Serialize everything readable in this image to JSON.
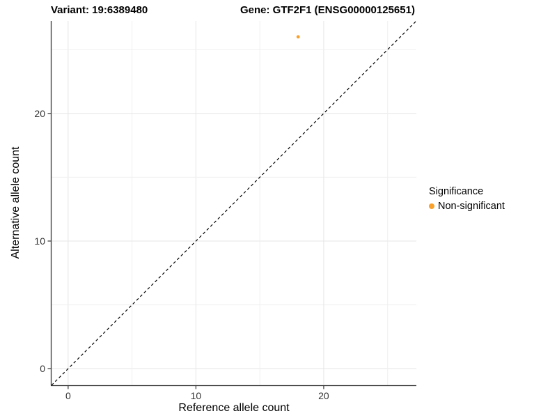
{
  "titles": {
    "variant": "Variant: 19:6389480",
    "gene": "Gene: GTF2F1 (ENSG00000125651)"
  },
  "legend": {
    "title": "Significance",
    "items": [
      {
        "label": "Non-significant",
        "color": "#F9A12B"
      }
    ]
  },
  "chart_data": {
    "type": "scatter",
    "title": "Variant: 19:6389480 / Gene: GTF2F1 (ENSG00000125651)",
    "xlabel": "Reference allele count",
    "ylabel": "Alternative allele count",
    "xlim": [
      -1.3,
      27.25
    ],
    "ylim": [
      -1.3,
      27.25
    ],
    "x_ticks": [
      0,
      10,
      20
    ],
    "y_ticks": [
      0,
      10,
      20
    ],
    "grid_values": [
      0,
      5,
      10,
      15,
      20,
      25
    ],
    "grid_on": true,
    "legend_position": "right",
    "series": [
      {
        "name": "Non-significant",
        "color": "#F9A12B",
        "points": [
          {
            "x": 18,
            "y": 26
          }
        ]
      }
    ],
    "reference_line": {
      "kind": "identity y=x",
      "style": "dashed",
      "color": "#000000"
    },
    "colors": {
      "grid_major": "#e5e5e5",
      "grid_minor": "#efefef",
      "axis": "#333333",
      "background": "#ffffff"
    }
  }
}
